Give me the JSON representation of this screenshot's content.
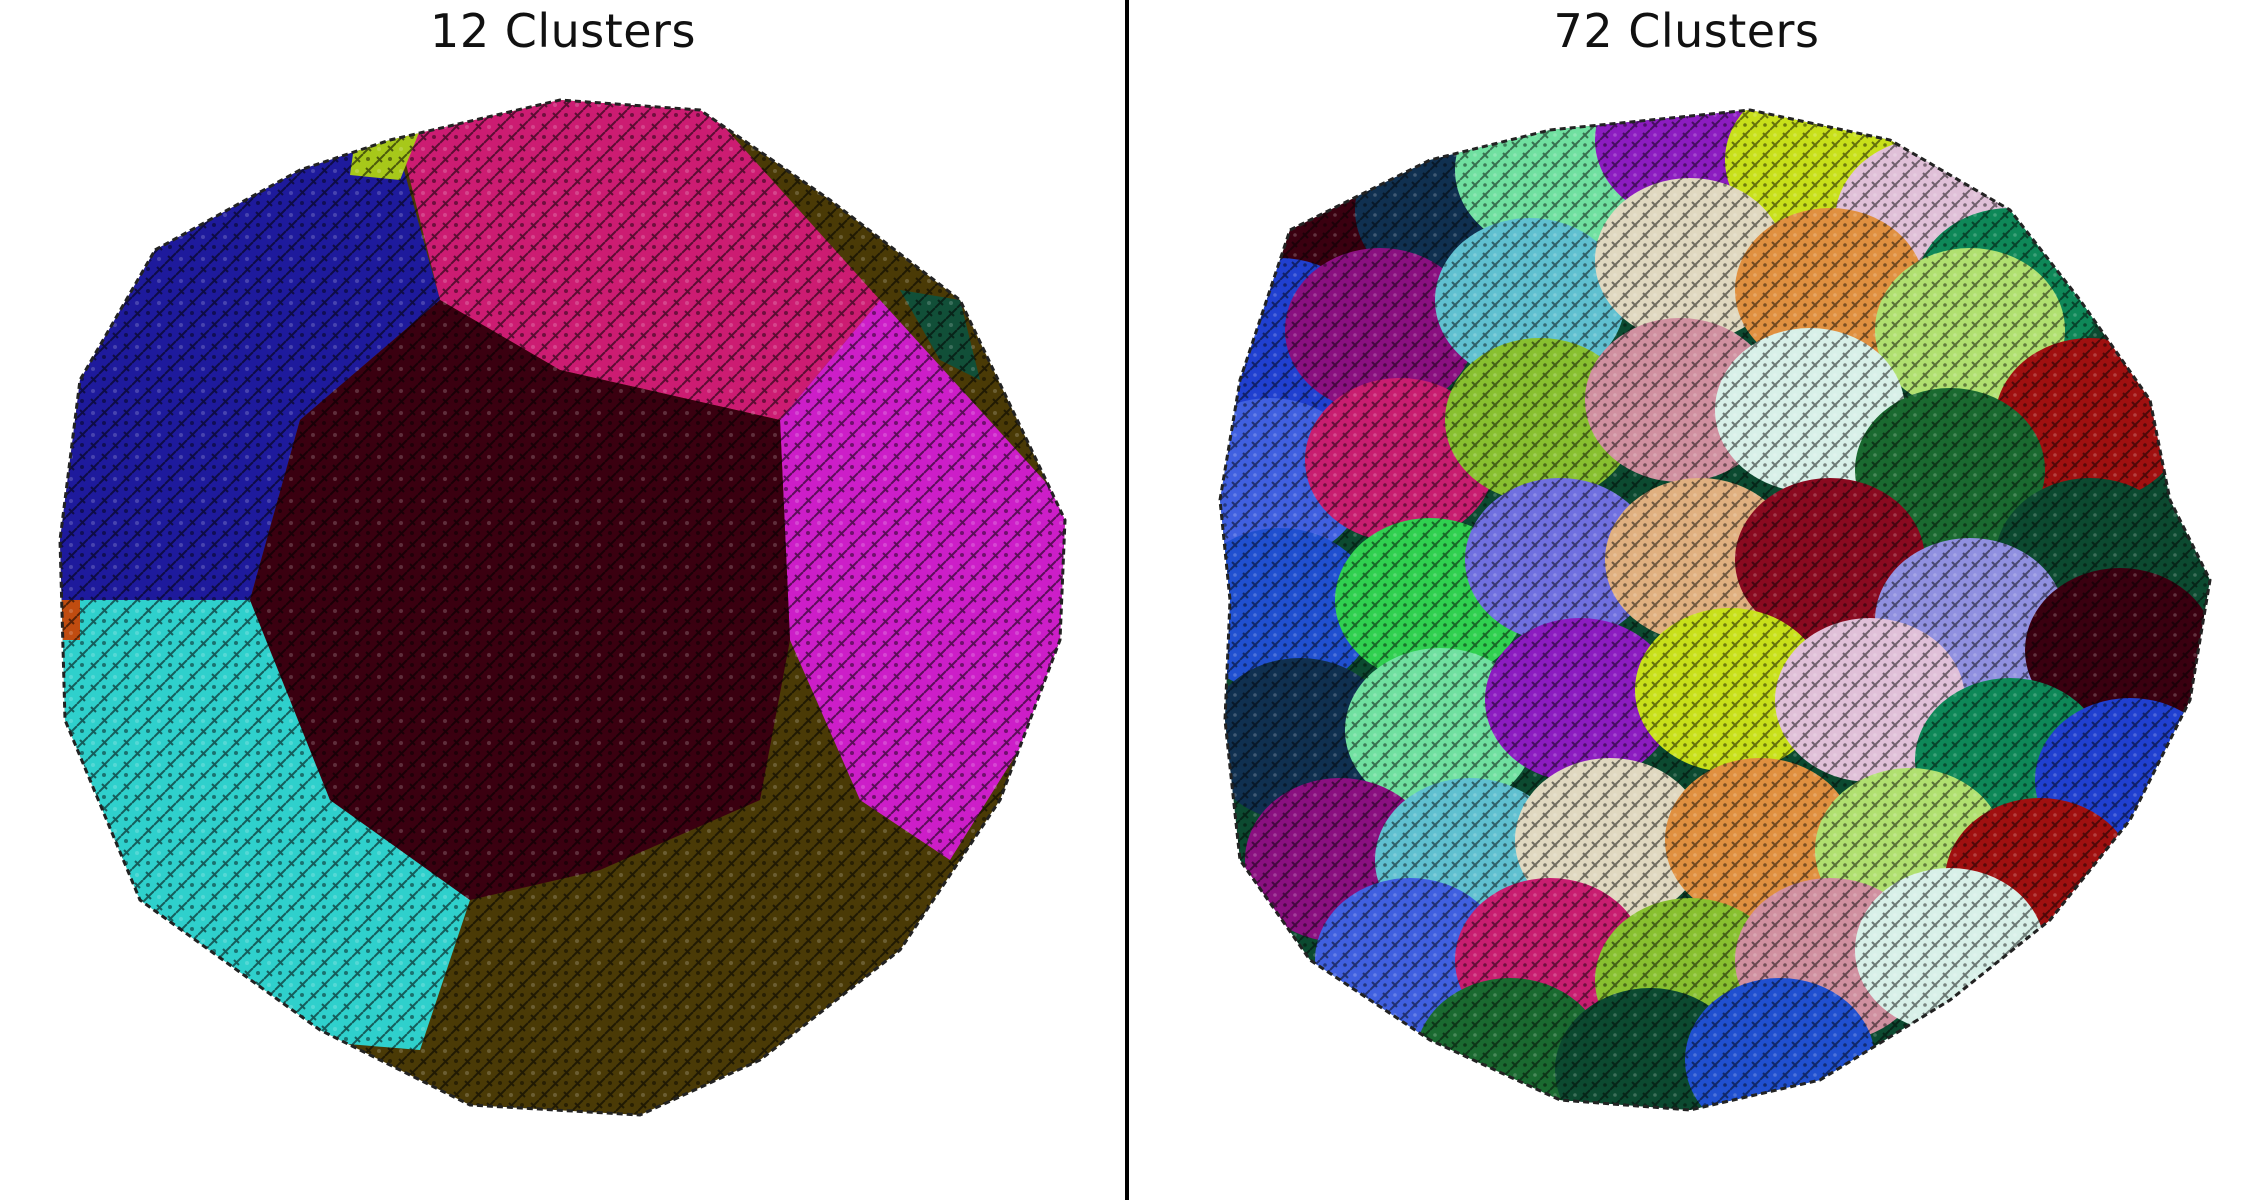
{
  "panels": [
    {
      "title": "12 Clusters",
      "cluster_count": 12,
      "colors": [
        "#cc1c72",
        "#1e1a9c",
        "#2fd0cc",
        "#4a3a06",
        "#cc1ec8",
        "#3a0010",
        "#a7c81a",
        "#114f38",
        "#c04c10"
      ]
    },
    {
      "title": "72 Clusters",
      "cluster_count": 72,
      "colors": [
        "#3a0010",
        "#103050",
        "#70e0a0",
        "#8c1cc0",
        "#c8e01a",
        "#e0c0d8",
        "#0e8858",
        "#2040d0",
        "#8a1080",
        "#60c0d0",
        "#e0d8c0",
        "#e09040",
        "#b0e070",
        "#a01010",
        "#4060e0",
        "#c81e70",
        "#88c030",
        "#d090a0",
        "#d8f0e8",
        "#1a6a30",
        "#0c4a30",
        "#2050d0",
        "#30d050",
        "#7070e0",
        "#e0b080",
        "#8a0a20",
        "#9090e0"
      ]
    }
  ]
}
